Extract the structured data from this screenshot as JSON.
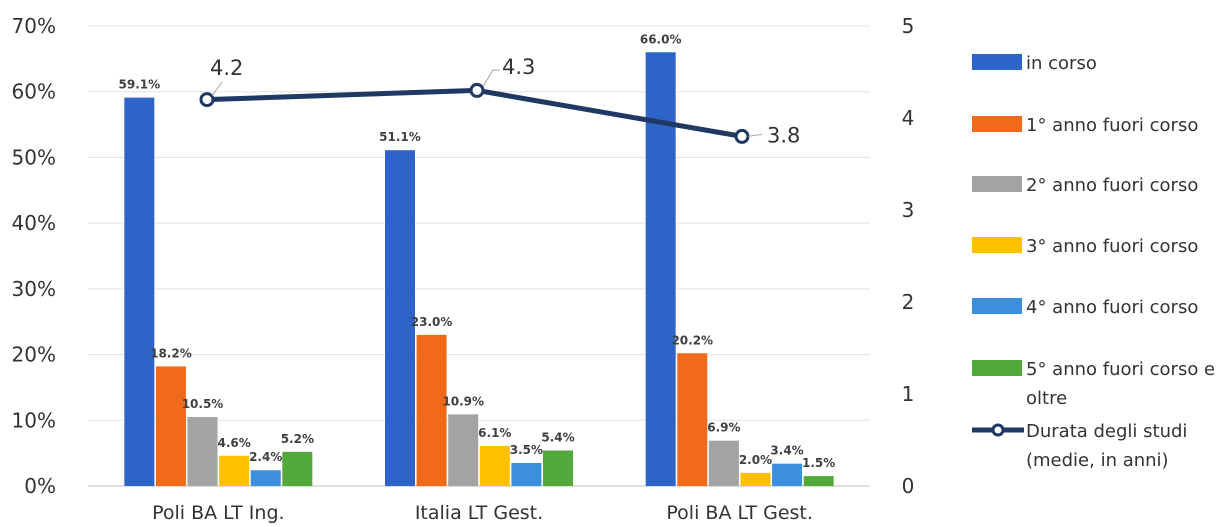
{
  "chart_data": {
    "type": "bar",
    "categories": [
      "Poli BA LT Ing.",
      "Italia LT Gest.",
      "Poli BA LT Gest."
    ],
    "series": [
      {
        "name": "in corso",
        "values": [
          59.1,
          51.1,
          66.0
        ],
        "labels": [
          "59.1%",
          "51.1%",
          "66.0%"
        ],
        "color": "#2E64C8"
      },
      {
        "name": "1° anno fuori corso",
        "values": [
          18.2,
          23.0,
          20.2
        ],
        "labels": [
          "18.2%",
          "23.0%",
          "20.2%"
        ],
        "color": "#F06A1A"
      },
      {
        "name": "2° anno fuori corso",
        "values": [
          10.5,
          10.9,
          6.9
        ],
        "labels": [
          "10.5%",
          "10.9%",
          "6.9%"
        ],
        "color": "#A3A3A3"
      },
      {
        "name": "3° anno fuori corso",
        "values": [
          4.6,
          6.1,
          2.0
        ],
        "labels": [
          "4.6%",
          "6.1%",
          "2.0%"
        ],
        "color": "#FFC000"
      },
      {
        "name": "4° anno fuori corso",
        "values": [
          2.4,
          3.5,
          3.4
        ],
        "labels": [
          "2.4%",
          "3.5%",
          "3.4%"
        ],
        "color": "#3B8FDB"
      },
      {
        "name": "5° anno fuori corso e oltre",
        "legend_lines": [
          "5° anno fuori corso e",
          "oltre"
        ],
        "values": [
          5.2,
          5.4,
          1.5
        ],
        "labels": [
          "5.2%",
          "5.4%",
          "1.5%"
        ],
        "color": "#52A83A"
      }
    ],
    "line_series": {
      "name": "Durata degli studi (medie, in anni)",
      "legend_lines": [
        "Durata degli studi",
        "(medie, in anni)"
      ],
      "values": [
        4.2,
        4.3,
        3.8
      ],
      "labels": [
        "4.2",
        "4.3",
        "3.8"
      ],
      "color": "#1F3864",
      "axis": "right"
    },
    "y_left": {
      "ticks": [
        "0%",
        "10%",
        "20%",
        "30%",
        "40%",
        "50%",
        "60%",
        "70%"
      ],
      "ylim": [
        0,
        70
      ]
    },
    "y_right": {
      "ticks": [
        "0",
        "1",
        "2",
        "3",
        "4",
        "5"
      ],
      "ylim": [
        0,
        5
      ]
    },
    "grid": true,
    "legend_position": "right"
  }
}
